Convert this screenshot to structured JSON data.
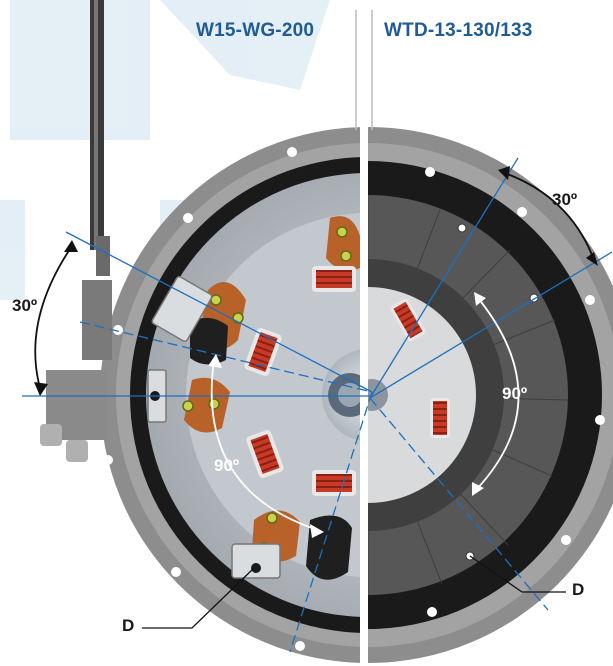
{
  "headings": {
    "left": "W15-WG-200",
    "right": "WTD-13-130/133"
  },
  "callouts": {
    "left_angle_top": "30º",
    "left_angle_bottom": "90º",
    "left_label_d": "D",
    "right_angle_top": "30º",
    "right_angle_mid": "90º",
    "right_label_d": "D"
  },
  "colors": {
    "heading": "#1f5b96",
    "guide_line": "#1c6fc0",
    "brake_pad": "#b8622a",
    "coil": "#c73a26",
    "housing": "#8d8d8d",
    "watermark": "#cfe1ef"
  }
}
